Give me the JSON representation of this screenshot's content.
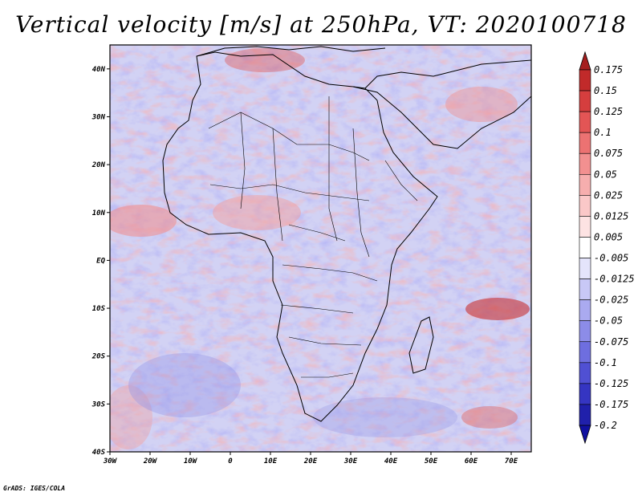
{
  "title": "Vertical velocity [m/s] at 250hPa, VT: 2020100718",
  "credit": "GrADS: IGES/COLA",
  "map": {
    "lat_labels": [
      "40N",
      "30N",
      "20N",
      "10N",
      "EQ",
      "10S",
      "20S",
      "30S",
      "40S"
    ],
    "lon_labels": [
      "30W",
      "20W",
      "10W",
      "0",
      "10E",
      "20E",
      "30E",
      "40E",
      "50E",
      "60E",
      "70E"
    ],
    "lon_range": [
      -30,
      75
    ],
    "lat_range": [
      -40,
      45
    ]
  },
  "colorbar": {
    "labels": [
      "0.175",
      "0.15",
      "0.125",
      "0.1",
      "0.075",
      "0.05",
      "0.025",
      "0.0125",
      "0.005",
      "-0.005",
      "-0.0125",
      "-0.025",
      "-0.05",
      "-0.075",
      "-0.1",
      "-0.125",
      "-0.175",
      "-0.2"
    ],
    "colors": [
      "#a51e1e",
      "#c12a2a",
      "#d53e3e",
      "#e35555",
      "#ec7272",
      "#f29090",
      "#f6aeae",
      "#fac8c8",
      "#fde3e3",
      "#ffffff",
      "#e4e4fb",
      "#c8c8f6",
      "#aaaaf0",
      "#8c8ce8",
      "#6e6edf",
      "#5050d3",
      "#3535c2",
      "#2020ab",
      "#1010a0"
    ]
  }
}
